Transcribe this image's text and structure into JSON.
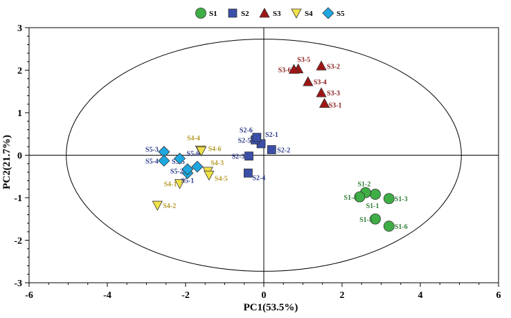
{
  "chart_data": {
    "type": "scatter",
    "title": "",
    "xlabel": "PC1(53.5%)",
    "ylabel": "PC2(21.7%)",
    "xlim": [
      -6,
      6
    ],
    "ylim": [
      -3,
      3
    ],
    "xticks": [
      -6,
      -4,
      -2,
      0,
      2,
      4,
      6
    ],
    "yticks": [
      -3,
      -2,
      -1,
      0,
      1,
      2,
      3
    ],
    "zero_lines": true,
    "ellipse": {
      "cx": 0,
      "cy": 0,
      "rx": 5.05,
      "ry": 2.73
    },
    "legend_position": "top-center",
    "series": [
      {
        "name": "S1",
        "marker": "circle",
        "color": "#3fae46",
        "label_color": "#2e7d32",
        "points": [
          {
            "label": "S1-1",
            "x": 2.85,
            "y": -0.92
          },
          {
            "label": "S1-2",
            "x": 2.6,
            "y": -0.88
          },
          {
            "label": "S1-3",
            "x": 3.2,
            "y": -1.02
          },
          {
            "label": "S1-4",
            "x": 2.45,
            "y": -0.98
          },
          {
            "label": "S1-5",
            "x": 2.85,
            "y": -1.5
          },
          {
            "label": "S1-6",
            "x": 3.2,
            "y": -1.67
          }
        ]
      },
      {
        "name": "S2",
        "marker": "square",
        "color": "#3b4ea8",
        "label_color": "#2c3a8c",
        "points": [
          {
            "label": "S2-1",
            "x": -0.07,
            "y": 0.27
          },
          {
            "label": "S2-2",
            "x": 0.2,
            "y": 0.13
          },
          {
            "label": "S2-3",
            "x": -0.38,
            "y": -0.02
          },
          {
            "label": "S2-4",
            "x": -0.4,
            "y": -0.42
          },
          {
            "label": "S2-5",
            "x": -0.22,
            "y": 0.36
          },
          {
            "label": "S2-6",
            "x": -0.18,
            "y": 0.42
          }
        ]
      },
      {
        "name": "S3",
        "marker": "triangle",
        "color": "#9e1515",
        "label_color": "#8b1a1a",
        "points": [
          {
            "label": "S3-1",
            "x": 1.55,
            "y": 1.22
          },
          {
            "label": "S3-2",
            "x": 1.47,
            "y": 2.1
          },
          {
            "label": "S3-3",
            "x": 1.47,
            "y": 1.47
          },
          {
            "label": "S3-4",
            "x": 1.13,
            "y": 1.73
          },
          {
            "label": "S3-5",
            "x": 0.88,
            "y": 2.03
          },
          {
            "label": "S3-6",
            "x": 0.77,
            "y": 2.02
          }
        ]
      },
      {
        "name": "S4",
        "marker": "triangle-down",
        "color": "#f0e14a",
        "label_color": "#b59a2a",
        "points": [
          {
            "label": "S4-1",
            "x": -2.15,
            "y": -0.67
          },
          {
            "label": "S4-2",
            "x": -2.72,
            "y": -1.18
          },
          {
            "label": "S4-3",
            "x": -1.43,
            "y": -0.38
          },
          {
            "label": "S4-4",
            "x": -1.62,
            "y": 0.12
          },
          {
            "label": "S4-5",
            "x": -1.4,
            "y": -0.47
          },
          {
            "label": "S4-6",
            "x": -1.6,
            "y": 0.1
          }
        ]
      },
      {
        "name": "S5",
        "marker": "diamond",
        "color": "#1ea7e0",
        "label_color": "#2c3a8c",
        "points": [
          {
            "label": "S5-1",
            "x": -1.95,
            "y": -0.42
          },
          {
            "label": "S5-2",
            "x": -1.95,
            "y": -0.33
          },
          {
            "label": "S5-3",
            "x": -2.55,
            "y": 0.08
          },
          {
            "label": "S5-4",
            "x": -2.55,
            "y": -0.13
          },
          {
            "label": "S5-5",
            "x": -1.7,
            "y": -0.27
          },
          {
            "label": "S5-6",
            "x": -2.15,
            "y": -0.08
          }
        ]
      }
    ]
  }
}
